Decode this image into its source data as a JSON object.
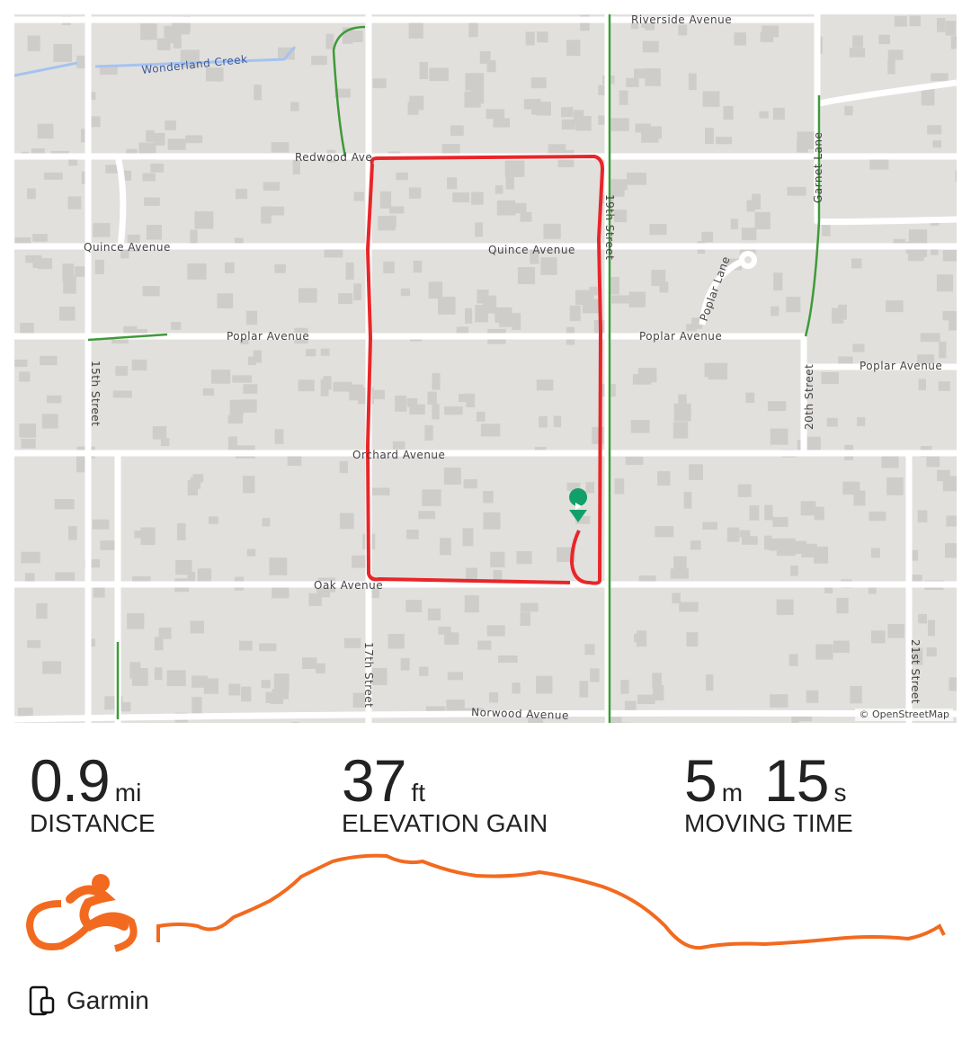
{
  "map": {
    "attribution": "© OpenStreetMap",
    "streets": {
      "riverside": "Riverside Avenue",
      "creek": "Wonderland Creek",
      "redwood": "Redwood Ave",
      "quince1": "Quince Avenue",
      "quince2": "Quince Avenue",
      "poplar1": "Poplar Avenue",
      "poplar2": "Poplar Avenue",
      "poplar3": "Poplar Avenue",
      "poplar_lane": "Poplar Lane",
      "garnet": "Garnet Lane",
      "orchard": "Orchard Avenue",
      "oak": "Oak Avenue",
      "norwood": "Norwood Avenue",
      "s15": "15th Street",
      "s17": "17th Street",
      "s19": "19th Street",
      "s20": "20th Street",
      "s21": "21st Street"
    },
    "route_color": "#e8262a",
    "start_marker_color": "#12a06a"
  },
  "stats": [
    {
      "value": "0.9",
      "unit": "mi",
      "label": "DISTANCE"
    },
    {
      "value": "37",
      "unit": "ft",
      "label": "ELEVATION GAIN"
    },
    {
      "value1": "5",
      "unit1": "m",
      "value2": "15",
      "unit2": "s",
      "label": "MOVING TIME"
    }
  ],
  "activity": {
    "type_icon": "cycling-icon",
    "accent": "#f26a1f"
  },
  "device": {
    "icon": "phone-watch-icon",
    "name": "Garmin"
  }
}
